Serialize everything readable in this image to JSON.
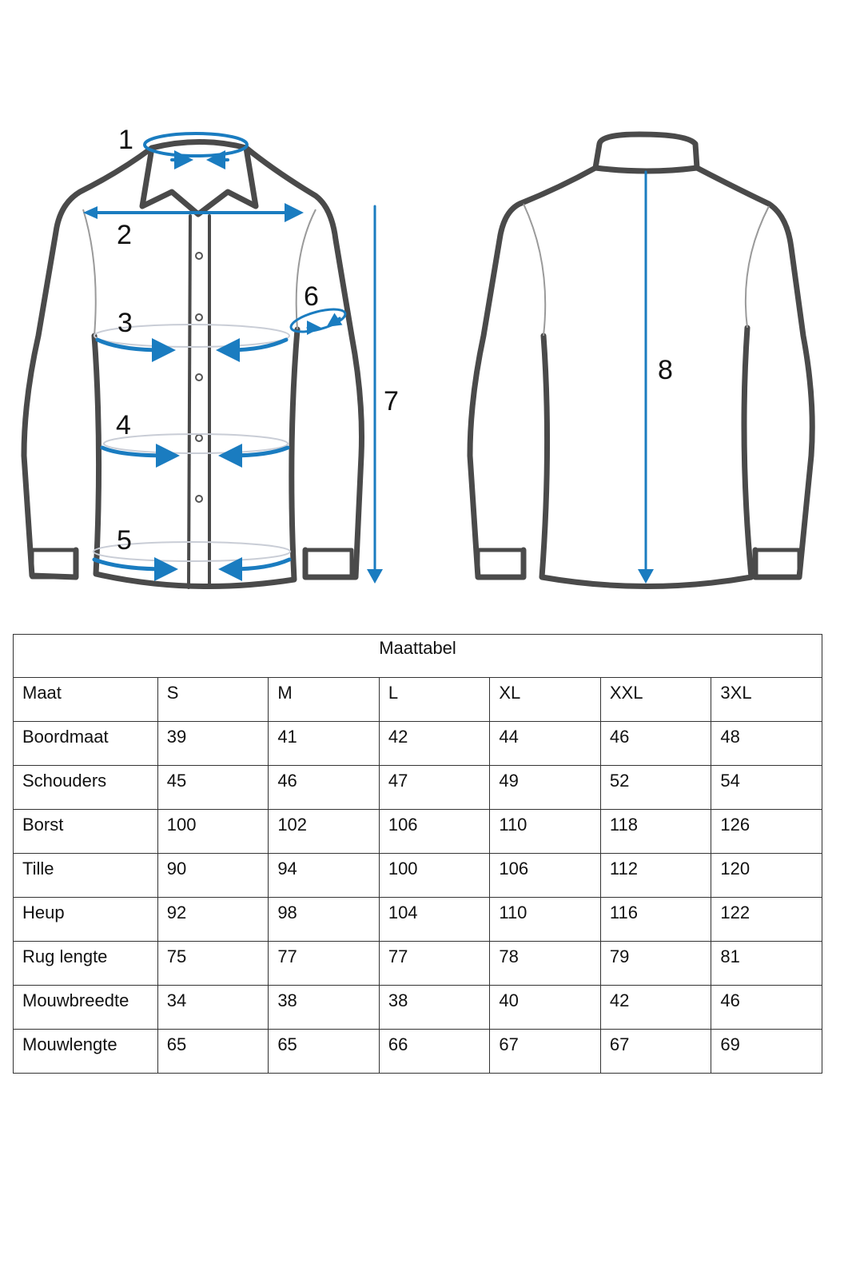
{
  "diagram": {
    "accent_color": "#1a7cc0",
    "front_labels": [
      "1",
      "2",
      "3",
      "4",
      "5",
      "6",
      "7"
    ],
    "back_labels": [
      "8"
    ]
  },
  "table": {
    "title": "Maattabel",
    "header": [
      "Maat",
      "S",
      "M",
      "L",
      "XL",
      "XXL",
      "3XL"
    ],
    "rows": [
      {
        "label": "Boordmaat",
        "values": [
          "39",
          "41",
          "42",
          "44",
          "46",
          "48"
        ]
      },
      {
        "label": "Schouders",
        "values": [
          "45",
          "46",
          "47",
          "49",
          "52",
          "54"
        ]
      },
      {
        "label": "Borst",
        "values": [
          "100",
          "102",
          "106",
          "110",
          "118",
          "126"
        ]
      },
      {
        "label": "Tille",
        "values": [
          "90",
          "94",
          "100",
          "106",
          "112",
          "120"
        ]
      },
      {
        "label": "Heup",
        "values": [
          "92",
          "98",
          "104",
          "110",
          "116",
          "122"
        ]
      },
      {
        "label": "Rug lengte",
        "values": [
          "75",
          "77",
          "77",
          "78",
          "79",
          "81"
        ]
      },
      {
        "label": "Mouwbreedte",
        "values": [
          "34",
          "38",
          "38",
          "40",
          "42",
          "46"
        ]
      },
      {
        "label": "Mouwlengte",
        "values": [
          "65",
          "65",
          "66",
          "67",
          "67",
          "69"
        ]
      }
    ]
  }
}
